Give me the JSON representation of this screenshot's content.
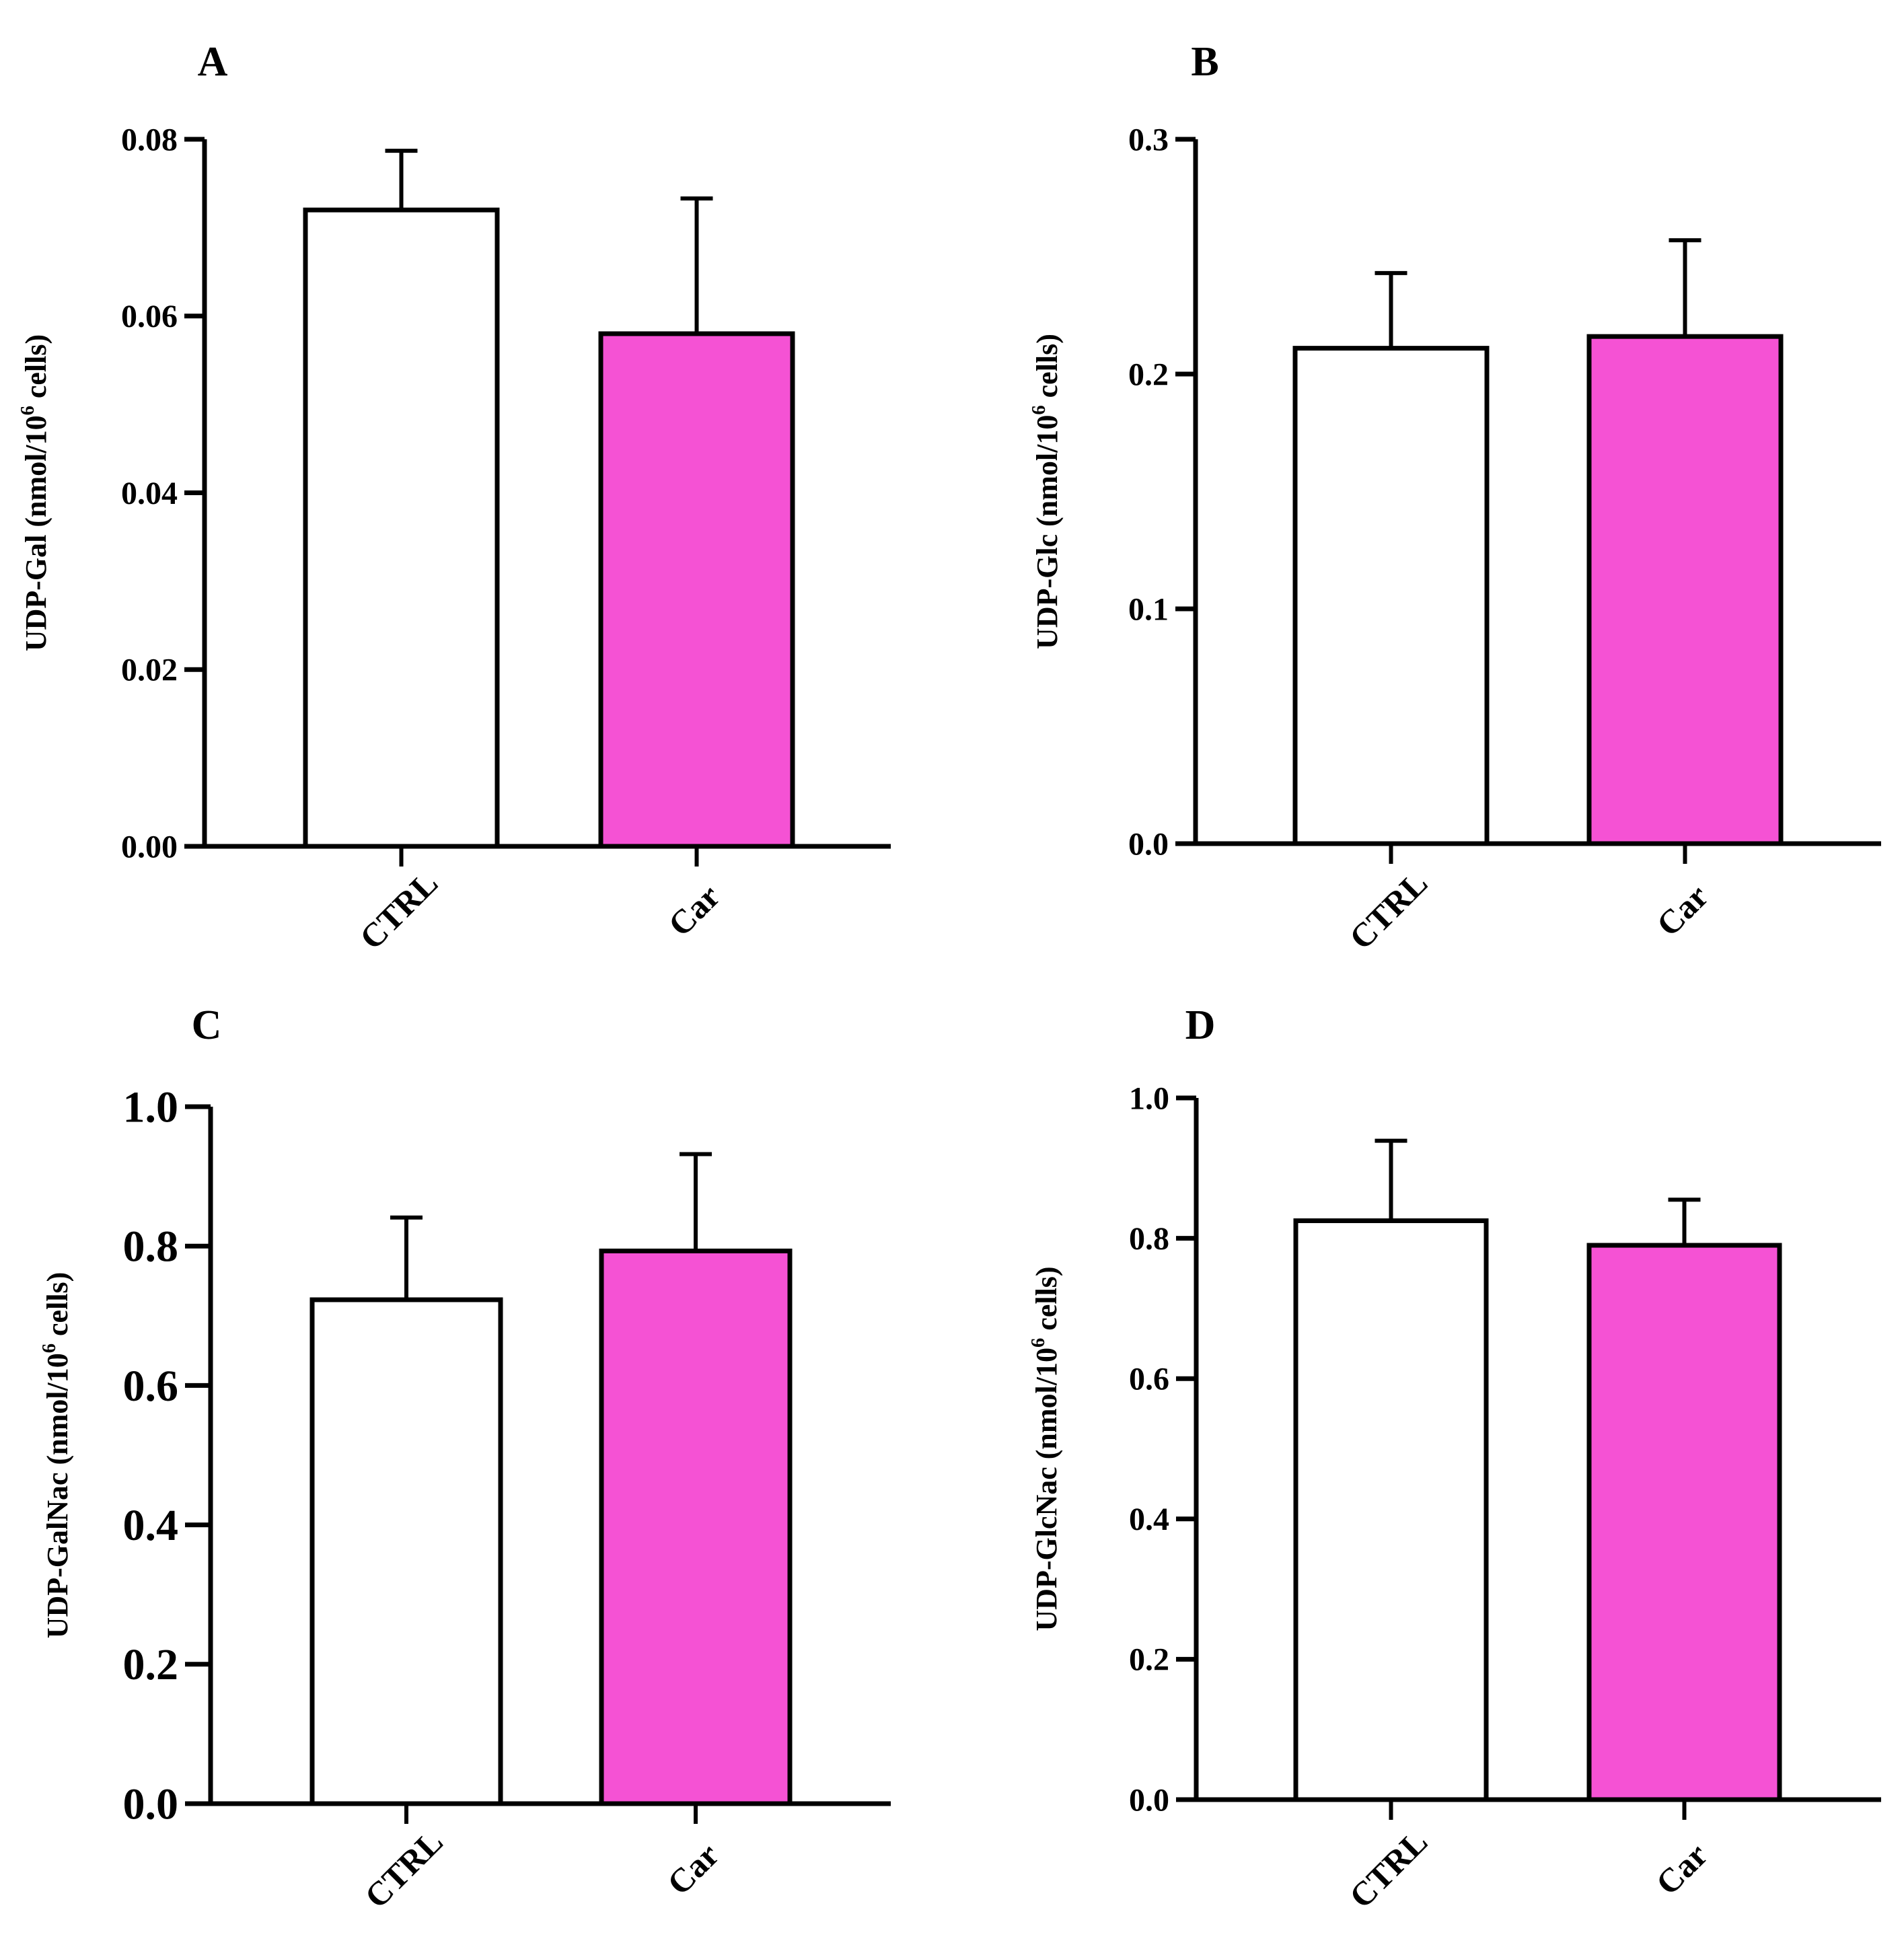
{
  "figure": {
    "background": "#ffffff",
    "bar_colors": [
      "#ffffff",
      "#f552d4"
    ],
    "stroke_color": "#000000"
  },
  "chart_data": [
    {
      "panel_label": "A",
      "type": "bar",
      "categories": [
        "CTRL",
        "Car"
      ],
      "values": [
        0.072,
        0.058
      ],
      "errors": [
        0.0067,
        0.0153
      ],
      "ylabel_pre": "UDP-Gal (nmol/10",
      "ylabel_sup": "6",
      "ylabel_post": " cells)",
      "ylim": [
        0,
        0.08
      ],
      "yticks": [
        0,
        0.02,
        0.04,
        0.06,
        0.08
      ],
      "ytick_labels": [
        "0.00",
        "0.02",
        "0.04",
        "0.06",
        "0.08"
      ]
    },
    {
      "panel_label": "B",
      "type": "bar",
      "categories": [
        "CTRL",
        "Car"
      ],
      "values": [
        0.211,
        0.216
      ],
      "errors": [
        0.032,
        0.041
      ],
      "ylabel_pre": "UDP-Glc (nmol/10",
      "ylabel_sup": "6",
      "ylabel_post": " cells)",
      "ylim": [
        0,
        0.3
      ],
      "yticks": [
        0,
        0.1,
        0.2,
        0.3
      ],
      "ytick_labels": [
        "0.0",
        "0.1",
        "0.2",
        "0.3"
      ]
    },
    {
      "panel_label": "C",
      "type": "bar",
      "categories": [
        "CTRL",
        "Car"
      ],
      "values": [
        0.723,
        0.793
      ],
      "errors": [
        0.118,
        0.139
      ],
      "ylabel_pre": "UDP-GalNac (nmol/10",
      "ylabel_sup": "6",
      "ylabel_post": " cells)",
      "ylim": [
        0,
        1.0
      ],
      "yticks": [
        0,
        0.2,
        0.4,
        0.6,
        0.8,
        1.0
      ],
      "ytick_labels": [
        "0.0",
        "0.2",
        "0.4",
        "0.6",
        "0.8",
        "1.0"
      ]
    },
    {
      "panel_label": "D",
      "type": "bar",
      "categories": [
        "CTRL",
        "Car"
      ],
      "values": [
        0.825,
        0.79
      ],
      "errors": [
        0.114,
        0.065
      ],
      "ylabel_pre": "UDP-GlcNac (nmol/10",
      "ylabel_sup": "6",
      "ylabel_post": " cells)",
      "ylim": [
        0,
        1.0
      ],
      "yticks": [
        0,
        0.2,
        0.4,
        0.6,
        0.8,
        1.0
      ],
      "ytick_labels": [
        "0.0",
        "0.2",
        "0.4",
        "0.6",
        "0.8",
        "1.0"
      ]
    }
  ]
}
